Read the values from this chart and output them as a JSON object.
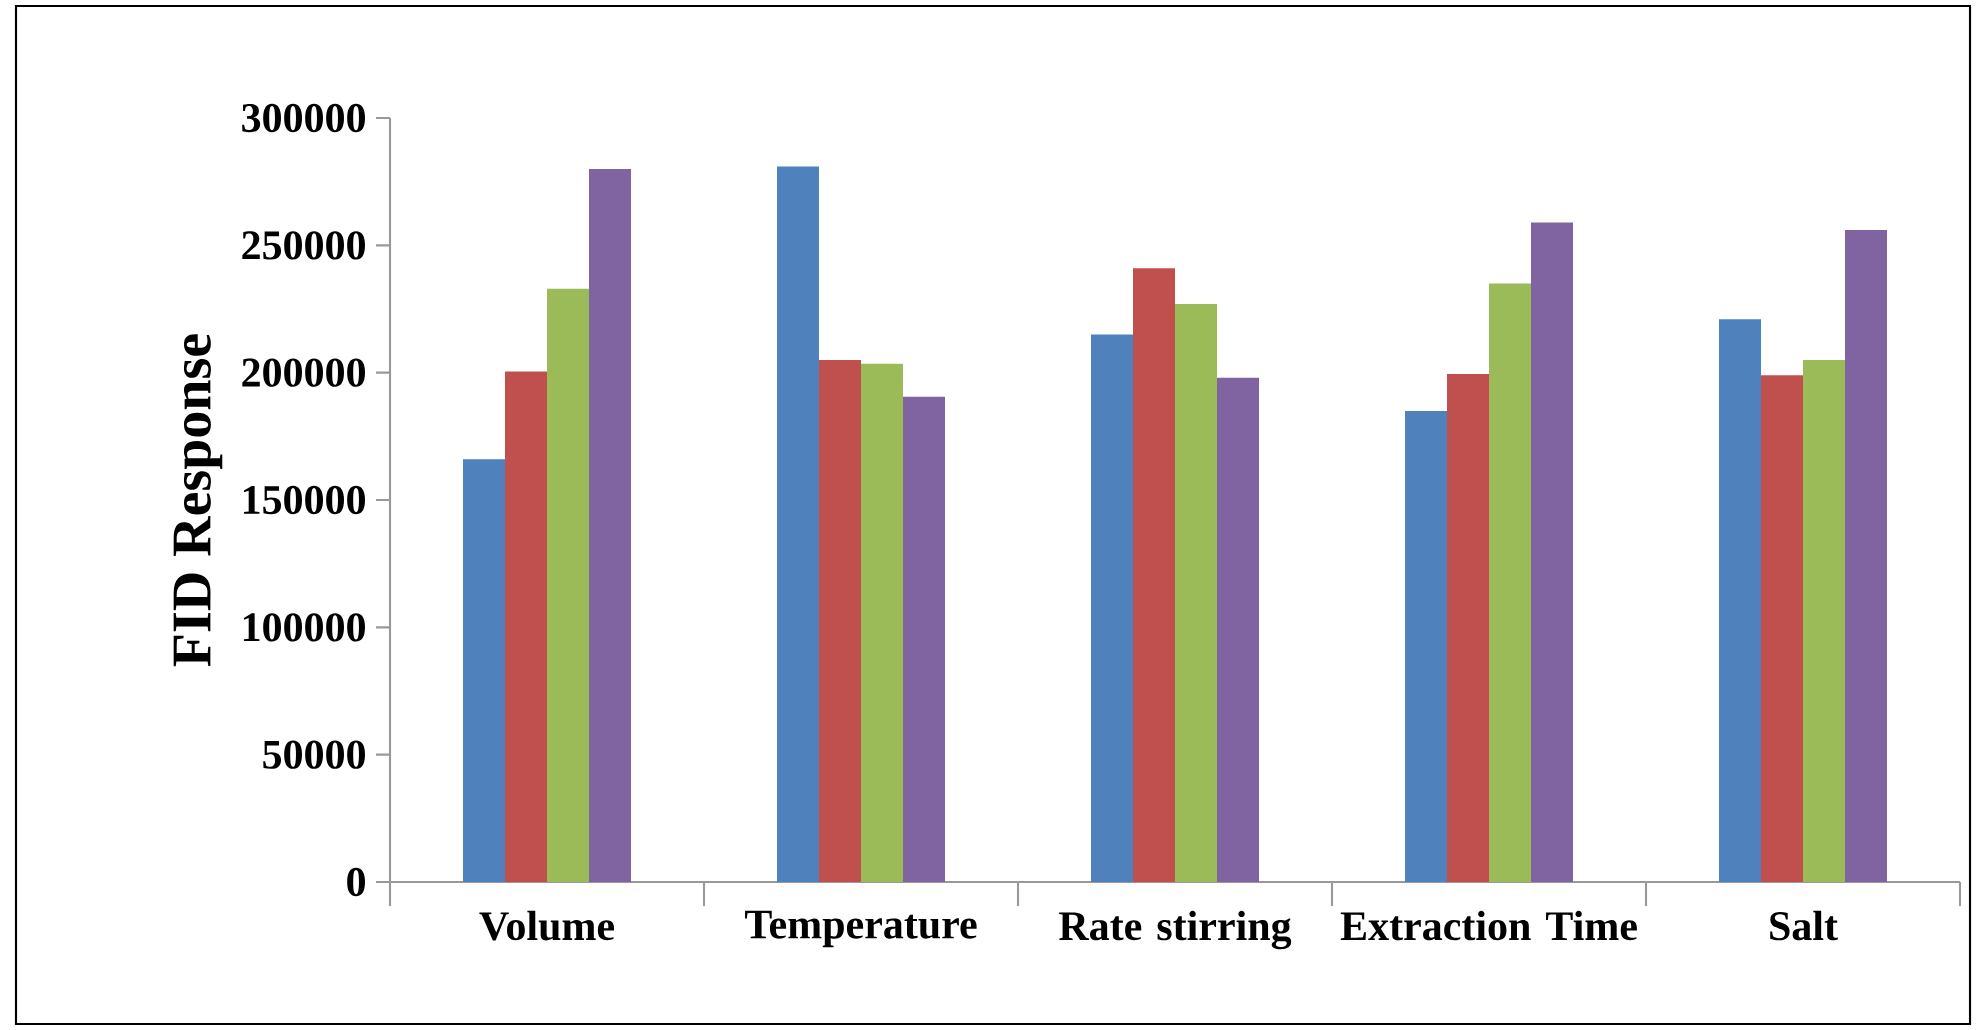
{
  "chart_data": {
    "type": "bar",
    "ylabel": "FID Response",
    "categories": [
      "Volume",
      "Temperature",
      "Rate stirring",
      "Extraction Time",
      "Salt"
    ],
    "series": [
      {
        "color": "#4f81bd",
        "values": [
          166000,
          281000,
          215000,
          185000,
          221000
        ]
      },
      {
        "color": "#c0504d",
        "values": [
          200500,
          205000,
          241000,
          199500,
          199000
        ]
      },
      {
        "color": "#9bbb59",
        "values": [
          233000,
          203500,
          227000,
          235000,
          205000
        ]
      },
      {
        "color": "#8064a2",
        "values": [
          280000,
          190500,
          198000,
          259000,
          256000
        ]
      }
    ],
    "ylim": [
      0,
      300000
    ],
    "yticks": [
      0,
      50000,
      100000,
      150000,
      200000,
      250000,
      300000
    ]
  }
}
